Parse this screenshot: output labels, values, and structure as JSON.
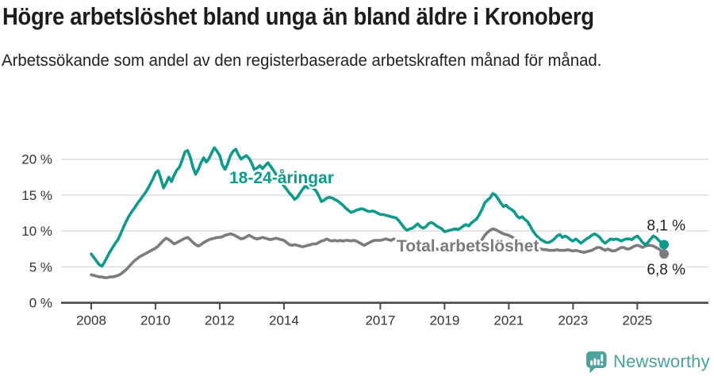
{
  "title": "Högre arbetslöshet bland unga än bland äldre i Kronoberg",
  "subtitle": "Arbetssökande som andel av den registerbaserade arbetskraften månad för månad.",
  "footer": {
    "brand": "Newsworthy",
    "logo_color": "#4ba39c",
    "logo_icon": "speech-bubble-bar-chart"
  },
  "chart_data": {
    "type": "line",
    "unit": "%",
    "x_start": "2008-01",
    "x_end": "2025-11",
    "x_ticks": [
      2008,
      2010,
      2012,
      2014,
      2017,
      2019,
      2021,
      2023,
      2025
    ],
    "y_ticks": [
      {
        "label": "0 %",
        "value": 0
      },
      {
        "label": "5 %",
        "value": 5
      },
      {
        "label": "10 %",
        "value": 10
      },
      {
        "label": "15 %",
        "value": 15
      },
      {
        "label": "20 %",
        "value": 20
      }
    ],
    "ylim": [
      0,
      22
    ],
    "grid": "horizontal",
    "legend_position": "inline-labels",
    "series": [
      {
        "name": "18-24-åringar",
        "color": "#0e9a8b",
        "end_label": "8,1 %",
        "end_value": 8.1,
        "values": [
          6.8,
          6.3,
          5.8,
          5.3,
          5.1,
          5.7,
          6.4,
          7.1,
          7.7,
          8.3,
          8.8,
          9.6,
          10.5,
          11.3,
          12.0,
          12.6,
          13.1,
          13.7,
          14.2,
          14.7,
          15.2,
          15.8,
          16.5,
          17.2,
          18.1,
          18.4,
          17.3,
          16.0,
          16.7,
          17.5,
          16.9,
          17.8,
          18.5,
          18.9,
          19.9,
          21.0,
          21.2,
          20.3,
          18.9,
          17.9,
          18.6,
          19.5,
          20.2,
          19.6,
          20.1,
          20.9,
          21.6,
          21.1,
          20.5,
          19.2,
          18.6,
          19.4,
          20.5,
          21.1,
          21.4,
          20.6,
          20.0,
          20.3,
          20.5,
          20.1,
          19.4,
          18.5,
          18.8,
          19.1,
          18.7,
          19.1,
          19.5,
          19.0,
          18.5,
          17.9,
          17.3,
          16.7,
          16.3,
          15.8,
          15.3,
          14.9,
          14.4,
          14.7,
          15.3,
          15.8,
          16.3,
          16.0,
          16.3,
          15.9,
          15.6,
          14.9,
          14.1,
          14.3,
          14.6,
          14.7,
          14.6,
          14.4,
          14.2,
          13.9,
          13.6,
          13.2,
          12.9,
          12.6,
          12.7,
          12.9,
          13.0,
          13.1,
          13.0,
          12.8,
          12.7,
          12.8,
          12.7,
          12.5,
          12.3,
          12.3,
          12.2,
          12.1,
          12.0,
          11.9,
          11.8,
          11.4,
          10.9,
          10.4,
          10.1,
          10.3,
          10.4,
          10.7,
          11.0,
          10.6,
          10.4,
          10.6,
          11.0,
          11.2,
          11.0,
          10.7,
          10.5,
          10.3,
          9.9,
          10.0,
          10.1,
          10.2,
          10.3,
          10.2,
          10.4,
          10.7,
          10.9,
          10.7,
          11.1,
          11.4,
          11.7,
          12.3,
          13.0,
          13.9,
          14.3,
          14.6,
          15.2,
          15.0,
          14.5,
          13.9,
          13.4,
          13.6,
          13.2,
          13.0,
          12.7,
          12.1,
          11.8,
          12.0,
          11.6,
          11.3,
          10.7,
          10.0,
          9.5,
          9.1,
          8.8,
          8.6,
          8.4,
          8.4,
          8.6,
          8.9,
          9.3,
          9.5,
          9.1,
          9.3,
          9.1,
          8.8,
          8.6,
          8.9,
          8.6,
          8.3,
          8.6,
          8.9,
          9.1,
          9.4,
          9.6,
          9.4,
          9.1,
          8.6,
          8.3,
          8.6,
          8.9,
          8.8,
          8.9,
          8.8,
          8.6,
          8.8,
          8.9,
          8.9,
          8.8,
          9.1,
          9.3,
          8.9,
          8.4,
          8.1,
          8.4,
          8.9,
          9.3,
          9.1,
          8.7,
          8.4,
          8.1
        ]
      },
      {
        "name": "Total arbetslöshet",
        "color": "#7c7c80",
        "end_label": "6,8 %",
        "end_value": 6.8,
        "values": [
          3.9,
          3.8,
          3.7,
          3.6,
          3.6,
          3.5,
          3.5,
          3.6,
          3.6,
          3.7,
          3.8,
          4.0,
          4.3,
          4.6,
          5.0,
          5.4,
          5.8,
          6.1,
          6.4,
          6.6,
          6.8,
          7.0,
          7.2,
          7.4,
          7.6,
          7.9,
          8.3,
          8.7,
          9.0,
          8.8,
          8.5,
          8.2,
          8.4,
          8.6,
          8.8,
          9.0,
          9.1,
          8.8,
          8.4,
          8.1,
          7.9,
          8.1,
          8.4,
          8.6,
          8.8,
          8.9,
          9.0,
          9.1,
          9.1,
          9.2,
          9.4,
          9.5,
          9.6,
          9.5,
          9.3,
          9.1,
          8.9,
          9.0,
          9.2,
          9.4,
          9.2,
          9.0,
          8.9,
          9.0,
          9.1,
          9.0,
          8.9,
          8.8,
          8.9,
          9.0,
          8.9,
          8.8,
          8.7,
          8.4,
          8.1,
          8.0,
          8.1,
          8.0,
          7.9,
          7.8,
          7.9,
          8.0,
          8.1,
          8.2,
          8.2,
          8.4,
          8.6,
          8.7,
          8.9,
          8.7,
          8.6,
          8.7,
          8.6,
          8.7,
          8.6,
          8.7,
          8.7,
          8.6,
          8.7,
          8.6,
          8.4,
          8.2,
          8.0,
          8.2,
          8.4,
          8.6,
          8.7,
          8.7,
          8.7,
          8.8,
          8.9,
          8.8,
          8.7,
          8.9,
          8.8,
          8.6,
          8.5,
          8.4,
          8.3,
          8.3,
          8.2,
          8.1,
          8.0,
          7.9,
          7.8,
          7.7,
          7.6,
          7.6,
          7.5,
          7.5,
          7.4,
          7.4,
          7.4,
          7.3,
          7.3,
          7.2,
          7.2,
          7.3,
          7.3,
          7.4,
          7.5,
          7.6,
          7.7,
          7.8,
          8.0,
          8.3,
          8.8,
          9.4,
          9.8,
          10.1,
          10.3,
          10.2,
          10.0,
          9.8,
          9.6,
          9.5,
          9.4,
          9.2,
          9.0,
          8.8,
          8.6,
          8.4,
          8.2,
          8.0,
          7.8,
          7.7,
          7.6,
          7.5,
          7.5,
          7.4,
          7.4,
          7.3,
          7.3,
          7.3,
          7.4,
          7.3,
          7.3,
          7.3,
          7.4,
          7.3,
          7.2,
          7.3,
          7.2,
          7.1,
          7.0,
          7.1,
          7.2,
          7.3,
          7.5,
          7.7,
          7.7,
          7.5,
          7.3,
          7.5,
          7.3,
          7.2,
          7.3,
          7.5,
          7.7,
          7.7,
          7.5,
          7.5,
          7.7,
          7.9,
          8.0,
          7.9,
          7.7,
          7.9,
          8.0,
          8.0,
          7.9,
          7.7,
          7.5,
          7.2,
          6.8
        ]
      }
    ]
  }
}
